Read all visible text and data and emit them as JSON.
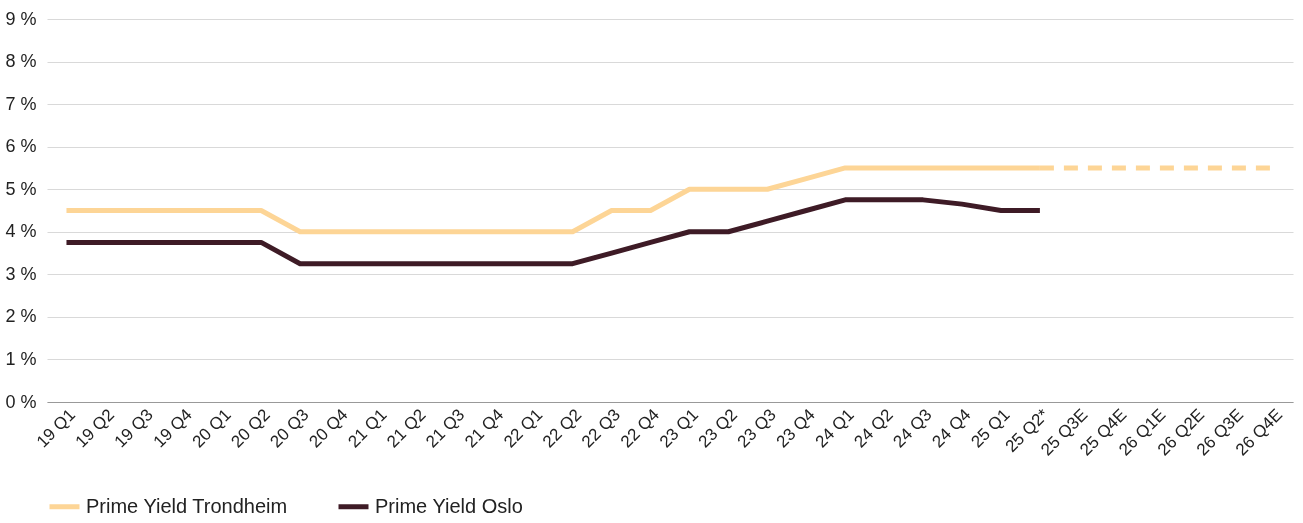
{
  "chart_data": {
    "type": "line",
    "categories": [
      "19 Q1",
      "19 Q2",
      "19 Q3",
      "19 Q4",
      "20 Q1",
      "20 Q2",
      "20 Q3",
      "20 Q4",
      "21 Q1",
      "21 Q2",
      "21 Q3",
      "21 Q4",
      "22 Q1",
      "22 Q2",
      "22 Q3",
      "22 Q4",
      "23 Q1",
      "23 Q2",
      "23 Q3",
      "23 Q4",
      "24 Q1",
      "24 Q2",
      "24 Q3",
      "24 Q4",
      "25 Q1",
      "25 Q2*",
      "25 Q3E",
      "25 Q4E",
      "26 Q1E",
      "26 Q2E",
      "26 Q3E",
      "26 Q4E"
    ],
    "series": [
      {
        "name": "Prime Yield Trondheim",
        "color": "#fdd596",
        "line_style": "solid",
        "values": [
          4.5,
          4.5,
          4.5,
          4.5,
          4.5,
          4.5,
          4.0,
          4.0,
          4.0,
          4.0,
          4.0,
          4.0,
          4.0,
          4.0,
          4.5,
          4.5,
          5.0,
          5.0,
          5.0,
          5.25,
          5.5,
          5.5,
          5.5,
          5.5,
          5.5,
          5.5,
          null,
          null,
          null,
          null,
          null,
          null
        ]
      },
      {
        "name": "Prime Yield Oslo",
        "color": "#3e1b26",
        "line_style": "solid",
        "values": [
          3.75,
          3.75,
          3.75,
          3.75,
          3.75,
          3.75,
          3.25,
          3.25,
          3.25,
          3.25,
          3.25,
          3.25,
          3.25,
          3.25,
          3.5,
          3.75,
          4.0,
          4.0,
          4.25,
          4.5,
          4.75,
          4.75,
          4.75,
          4.65,
          4.5,
          4.5,
          null,
          null,
          null,
          null,
          null,
          null
        ]
      },
      {
        "color": "#fdd596",
        "line_style": "dashed",
        "values": [
          null,
          null,
          null,
          null,
          null,
          null,
          null,
          null,
          null,
          null,
          null,
          null,
          null,
          null,
          null,
          null,
          null,
          null,
          null,
          null,
          null,
          null,
          null,
          null,
          null,
          5.5,
          5.5,
          5.5,
          5.5,
          5.5,
          5.5,
          5.5
        ]
      }
    ],
    "ylim": [
      0,
      9
    ],
    "yticks": [
      {
        "value": 0,
        "label": "0 %"
      },
      {
        "value": 1,
        "label": "1 %"
      },
      {
        "value": 2,
        "label": "2 %"
      },
      {
        "value": 3,
        "label": "3 %"
      },
      {
        "value": 4,
        "label": "4 %"
      },
      {
        "value": 5,
        "label": "5 %"
      },
      {
        "value": 6,
        "label": "6 %"
      },
      {
        "value": 7,
        "label": "7 %"
      },
      {
        "value": 8,
        "label": "8 %"
      },
      {
        "value": 9,
        "label": "9 %"
      }
    ],
    "grid": "y",
    "legend": "bottom",
    "marker": "none"
  }
}
